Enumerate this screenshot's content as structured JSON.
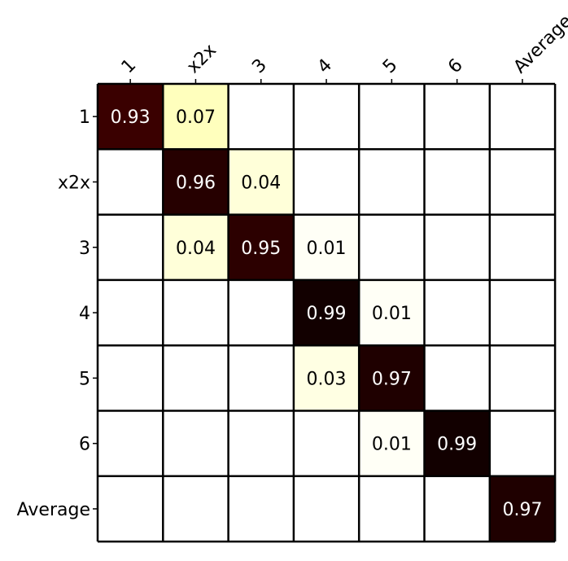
{
  "chart_data": {
    "type": "heatmap",
    "title": "",
    "xlabel": "",
    "ylabel": "",
    "x_labels": [
      "1",
      "x2x",
      "3",
      "4",
      "5",
      "6",
      "Average"
    ],
    "y_labels": [
      "1",
      "x2x",
      "3",
      "4",
      "5",
      "6",
      "Average"
    ],
    "x_label_rotation_deg": -45,
    "colormap": "white-yellow-dark-red (hot_r)",
    "values": [
      [
        0.93,
        0.07,
        null,
        null,
        null,
        null,
        null
      ],
      [
        null,
        0.96,
        0.04,
        null,
        null,
        null,
        null
      ],
      [
        null,
        0.04,
        0.95,
        0.01,
        null,
        null,
        null
      ],
      [
        null,
        null,
        null,
        0.99,
        0.01,
        null,
        null
      ],
      [
        null,
        null,
        null,
        0.03,
        0.97,
        null,
        null
      ],
      [
        null,
        null,
        null,
        null,
        0.01,
        0.99,
        null
      ],
      [
        null,
        null,
        null,
        null,
        null,
        null,
        0.97
      ]
    ],
    "labels": [
      [
        "0.93",
        "0.07",
        "",
        "",
        "",
        "",
        ""
      ],
      [
        "",
        "0.96",
        "0.04",
        "",
        "",
        "",
        ""
      ],
      [
        "",
        "0.04",
        "0.95",
        "0.01",
        "",
        "",
        ""
      ],
      [
        "",
        "",
        "",
        "0.99",
        "0.01",
        "",
        ""
      ],
      [
        "",
        "",
        "",
        "0.03",
        "0.97",
        "",
        ""
      ],
      [
        "",
        "",
        "",
        "",
        "0.01",
        "0.99",
        ""
      ],
      [
        "",
        "",
        "",
        "",
        "",
        "",
        "0.97"
      ]
    ],
    "colors": {
      "empty": "#ffffff",
      "grid": "#000000",
      "text_dark": "#000000",
      "text_light": "#ffffff"
    }
  }
}
